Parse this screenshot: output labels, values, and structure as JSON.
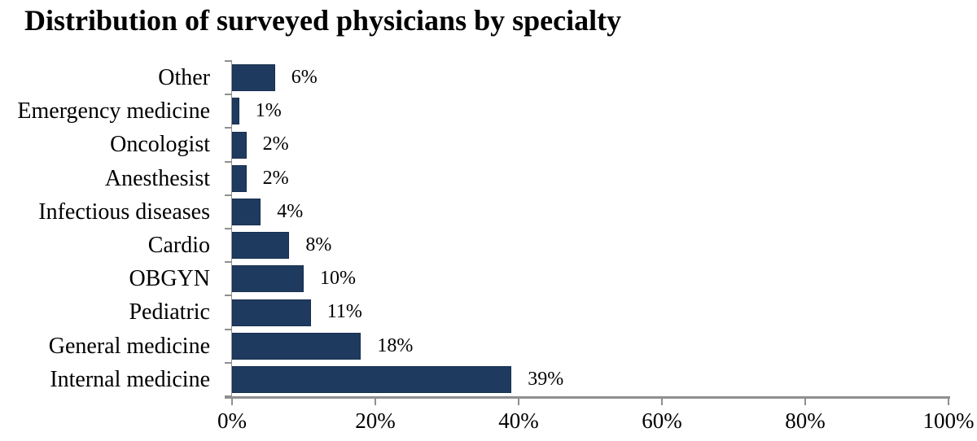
{
  "chart_data": {
    "type": "bar",
    "orientation": "horizontal",
    "title": "Distribution of surveyed physicians by specialty",
    "categories": [
      "Other",
      "Emergency medicine",
      "Oncologist",
      "Anesthesist",
      "Infectious diseases",
      "Cardio",
      "OBGYN",
      "Pediatric",
      "General medicine",
      "Internal medicine"
    ],
    "values": [
      6,
      1,
      2,
      2,
      4,
      8,
      10,
      11,
      18,
      39
    ],
    "value_labels": [
      "6%",
      "1%",
      "2%",
      "2%",
      "4%",
      "8%",
      "10%",
      "11%",
      "18%",
      "39%"
    ],
    "xlabel": "",
    "ylabel": "",
    "xlim": [
      0,
      100
    ],
    "x_tick_values": [
      0,
      20,
      40,
      60,
      80,
      100
    ],
    "x_tick_labels": [
      "0%",
      "20%",
      "40%",
      "60%",
      "80%",
      "100%"
    ],
    "grid": false,
    "legend": false,
    "bar_color": "#1f3a5f",
    "axis_color": "#8f8f8f",
    "text_color": "#000000",
    "background": "#ffffff"
  }
}
